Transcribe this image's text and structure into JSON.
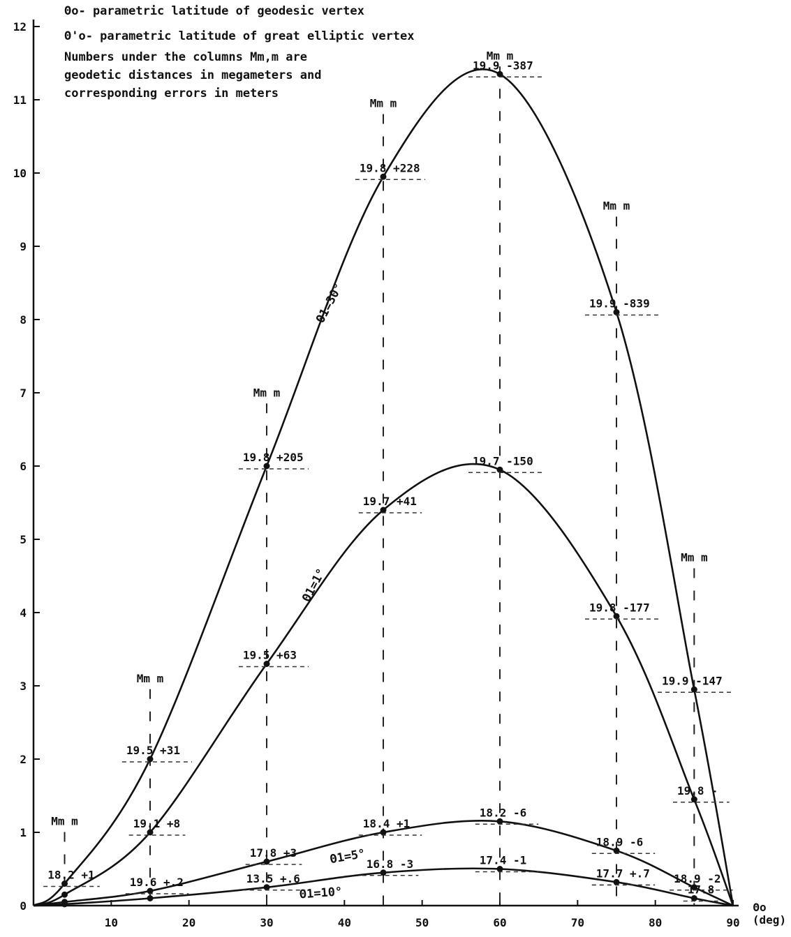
{
  "chart_data": {
    "type": "line",
    "xlim": [
      0,
      90
    ],
    "ylim": [
      0,
      12
    ],
    "xticks": [
      10,
      20,
      30,
      40,
      50,
      60,
      70,
      80,
      90
    ],
    "yticks": [
      0,
      1,
      2,
      3,
      4,
      5,
      6,
      7,
      8,
      9,
      10,
      11,
      12
    ],
    "xlabel": "Θo",
    "xunit": "(deg)",
    "grid": false,
    "legend_lines": [
      "Θo- parametric latitude of geodesic vertex",
      "Θ'o- parametric latitude of great elliptic vertex",
      "Numbers under the columns Mm,m are",
      "geodetic distances in megameters and",
      "corresponding errors in meters"
    ],
    "column_header": "Mm  m",
    "series": [
      {
        "name": "Θ1=30°",
        "x": [
          0,
          4,
          15,
          30,
          45,
          60,
          75,
          85,
          90
        ],
        "y": [
          0,
          0.3,
          2.0,
          6.0,
          9.95,
          11.35,
          8.1,
          2.95,
          0
        ]
      },
      {
        "name": "Θ1=1°",
        "x": [
          0,
          4,
          15,
          30,
          45,
          60,
          75,
          85,
          90
        ],
        "y": [
          0,
          0.15,
          1.0,
          3.3,
          5.4,
          5.95,
          3.95,
          1.45,
          0
        ]
      },
      {
        "name": "Θ1=5°",
        "x": [
          0,
          4,
          15,
          30,
          45,
          60,
          75,
          85,
          90
        ],
        "y": [
          0,
          0.05,
          0.2,
          0.6,
          1.0,
          1.15,
          0.75,
          0.25,
          0
        ]
      },
      {
        "name": "Θ1=10°",
        "x": [
          0,
          4,
          15,
          30,
          45,
          60,
          75,
          85,
          90
        ],
        "y": [
          0,
          0.02,
          0.1,
          0.25,
          0.45,
          0.5,
          0.32,
          0.1,
          0
        ]
      }
    ],
    "annotations": [
      {
        "x": 60,
        "y": 11.35,
        "text": "19.9  -387"
      },
      {
        "x": 45,
        "y": 9.95,
        "text": "19.8 +228"
      },
      {
        "x": 75,
        "y": 8.1,
        "text": "19.9  -839"
      },
      {
        "x": 30,
        "y": 6.0,
        "text": "19.8 +205"
      },
      {
        "x": 60,
        "y": 5.95,
        "text": "19.7  -150"
      },
      {
        "x": 45,
        "y": 5.4,
        "text": "19.7 +41"
      },
      {
        "x": 75,
        "y": 3.95,
        "text": "19.8  -177"
      },
      {
        "x": 30,
        "y": 3.3,
        "text": "19.5  +63"
      },
      {
        "x": 85,
        "y": 2.95,
        "text": "19.9  -147"
      },
      {
        "x": 15,
        "y": 2.0,
        "text": "19.5  +31"
      },
      {
        "x": 85,
        "y": 1.45,
        "text": "19.8  -"
      },
      {
        "x": 60,
        "y": 1.15,
        "text": "18.2  -6"
      },
      {
        "x": 45,
        "y": 1.0,
        "text": "18.4  +1"
      },
      {
        "x": 15,
        "y": 1.0,
        "text": "19.1 +8"
      },
      {
        "x": 75,
        "y": 0.75,
        "text": "18.9  -6"
      },
      {
        "x": 30,
        "y": 0.6,
        "text": "17.8 +3"
      },
      {
        "x": 60,
        "y": 0.5,
        "text": "17.4  -1"
      },
      {
        "x": 45,
        "y": 0.45,
        "text": "16.8 -3"
      },
      {
        "x": 75,
        "y": 0.32,
        "text": "17.7 +.7"
      },
      {
        "x": 30,
        "y": 0.25,
        "text": "13.5 +.6"
      },
      {
        "x": 85,
        "y": 0.25,
        "text": "18.9  -2"
      },
      {
        "x": 15,
        "y": 0.2,
        "text": "19.6 +.2"
      },
      {
        "x": 4,
        "y": 0.3,
        "text": "18.2 +1"
      },
      {
        "x": 85,
        "y": 0.1,
        "text": "17.8"
      }
    ],
    "column_markers": [
      {
        "x": 4,
        "header_y": 1.1
      },
      {
        "x": 15,
        "header_y": 3.05
      },
      {
        "x": 30,
        "header_y": 6.95
      },
      {
        "x": 45,
        "header_y": 10.9
      },
      {
        "x": 60,
        "header_y": 11.55
      },
      {
        "x": 75,
        "header_y": 9.5
      },
      {
        "x": 85,
        "header_y": 4.7
      }
    ],
    "curve_labels": [
      {
        "x": 38.5,
        "y": 8.2,
        "rot": -62,
        "text": "Θ1=30°"
      },
      {
        "x": 36.5,
        "y": 4.35,
        "rot": -62,
        "text": "Θ1=1°"
      },
      {
        "x": 40.5,
        "y": 0.62,
        "rot": -10,
        "text": "Θ1=5°"
      },
      {
        "x": 37,
        "y": 0.12,
        "rot": -4,
        "text": "Θ1=10°"
      }
    ]
  }
}
